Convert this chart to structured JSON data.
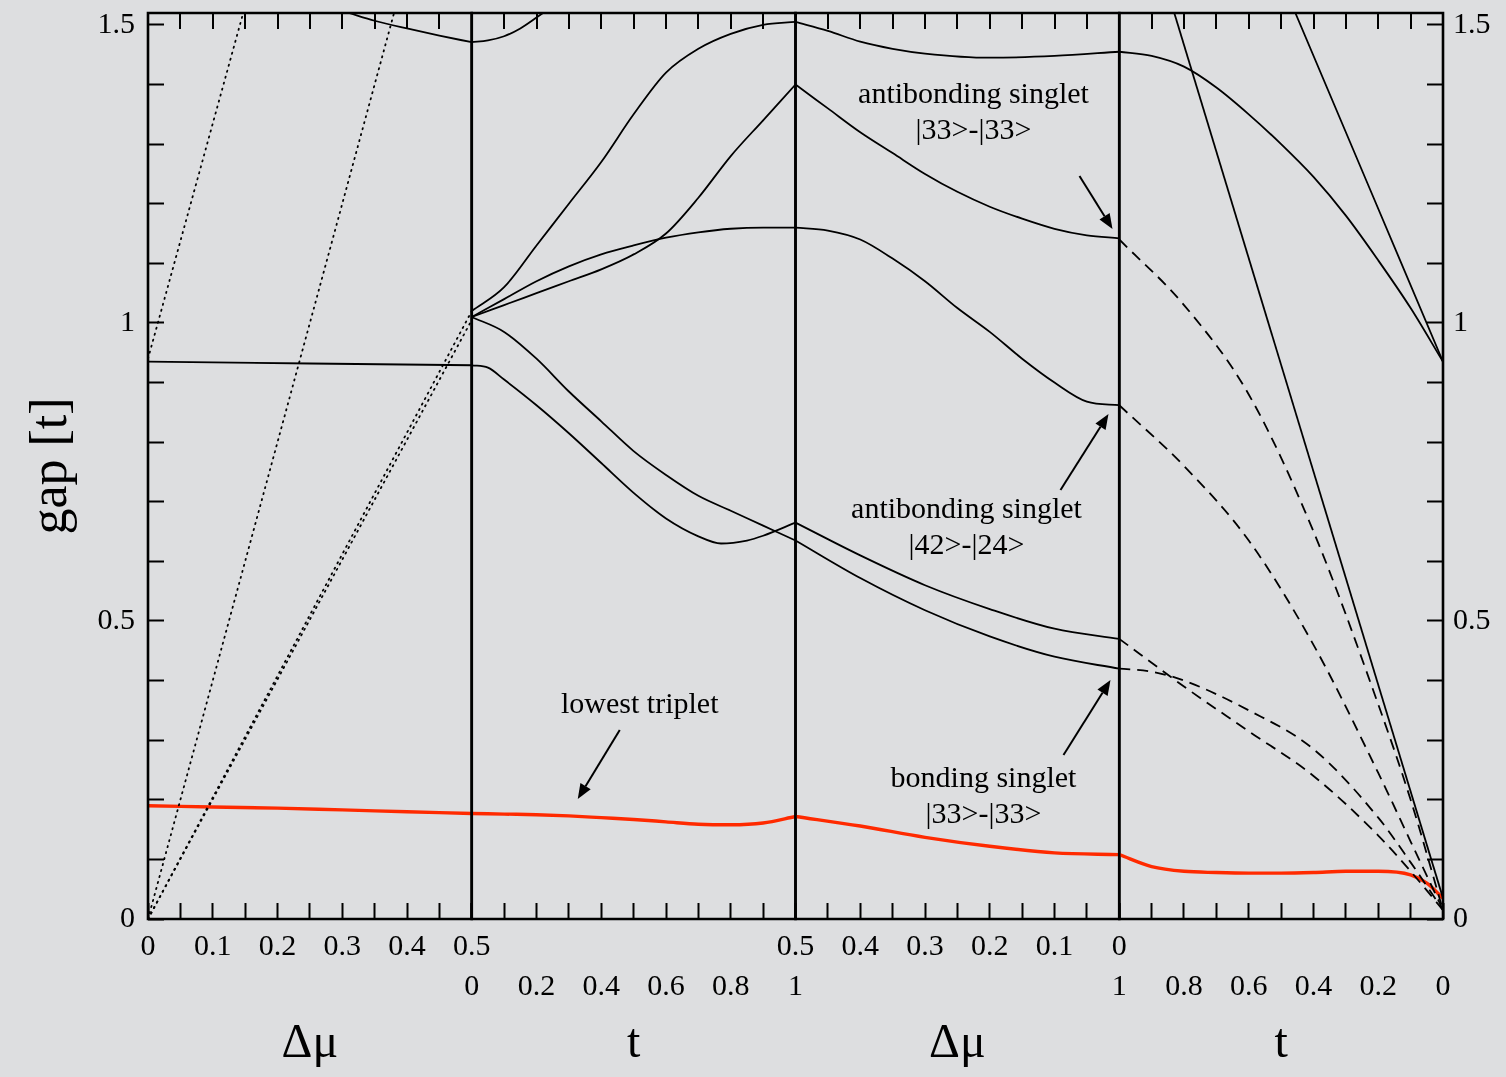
{
  "chart_data": [
    {
      "type": "line",
      "xlabel": "Δμ",
      "ylabel": "gap [t]",
      "marker": "none",
      "xlim": [
        0,
        0.5
      ],
      "xticks": [
        0,
        {
          "value": 0.05,
          "label": null
        },
        0.1,
        {
          "value": 0.15,
          "label": null
        },
        0.2,
        {
          "value": 0.25,
          "label": null
        },
        0.3,
        {
          "value": 0.35,
          "label": null
        },
        0.4,
        {
          "value": 0.45,
          "label": null
        },
        0.5
      ],
      "ylim": [
        0,
        1.52
      ],
      "yticks": [
        0,
        {
          "value": 0.1,
          "label": null
        },
        {
          "value": 0.2,
          "label": null
        },
        {
          "value": 0.3,
          "label": null
        },
        {
          "value": 0.4,
          "label": null
        },
        0.5,
        {
          "value": 0.6,
          "label": null
        },
        {
          "value": 0.7,
          "label": null
        },
        {
          "value": 0.8,
          "label": null
        },
        {
          "value": 0.9,
          "label": null
        },
        1,
        {
          "value": 1.1,
          "label": null
        },
        {
          "value": 1.2,
          "label": null
        },
        {
          "value": 1.3,
          "label": null
        },
        {
          "value": 1.4,
          "label": null
        },
        1.5
      ],
      "series": [
        {
          "color": "#000000",
          "line_style": "dotted",
          "x": [
            0,
            0.147
          ],
          "values": [
            0.94,
            1.52
          ]
        },
        {
          "color": "#000000",
          "line_style": "dotted",
          "x": [
            0,
            0.38
          ],
          "values": [
            0,
            1.52
          ]
        },
        {
          "color": "#000000",
          "line_style": "dotted",
          "x": [
            0,
            0.5
          ],
          "values": [
            0,
            1.02
          ]
        },
        {
          "color": "#000000",
          "line_style": "dotted",
          "x": [
            0,
            0.5
          ],
          "values": [
            0,
            1.005
          ]
        },
        {
          "color": "#000000",
          "line_style": "solid",
          "x": [
            0,
            0.5
          ],
          "values": [
            0.935,
            0.929
          ]
        },
        {
          "color": "#000000",
          "line_style": "solid",
          "x": [
            0.31,
            0.35,
            0.4,
            0.45,
            0.5
          ],
          "values": [
            1.52,
            1.507,
            1.494,
            1.482,
            1.471
          ]
        },
        {
          "color": "#ff2a00",
          "line_style": "solid",
          "x": [
            0,
            0.1,
            0.2,
            0.3,
            0.4,
            0.5
          ],
          "values": [
            0.19,
            0.188,
            0.186,
            0.183,
            0.18,
            0.177
          ]
        }
      ]
    },
    {
      "type": "line",
      "xlabel": "t",
      "marker": "none",
      "tick_labels": "x",
      "xlim": [
        0,
        1
      ],
      "xticks": [
        0,
        {
          "value": 0.1,
          "label": null
        },
        0.2,
        {
          "value": 0.3,
          "label": null
        },
        0.4,
        {
          "value": 0.5,
          "label": null
        },
        0.6,
        {
          "value": 0.7,
          "label": null
        },
        0.8,
        {
          "value": 0.9,
          "label": null
        },
        1
      ],
      "ylim": [
        0,
        1.52
      ],
      "series": [
        {
          "color": "#000000",
          "line_style": "solid",
          "x": [
            0,
            0.05,
            0.1,
            0.15,
            0.22
          ],
          "values": [
            1.471,
            1.474,
            1.481,
            1.494,
            1.52
          ]
        },
        {
          "color": "#000000",
          "line_style": "solid",
          "x": [
            0,
            0.1,
            0.2,
            0.3,
            0.4,
            0.5,
            0.6,
            0.7,
            0.8,
            0.9,
            1
          ],
          "values": [
            1.02,
            1.06,
            1.13,
            1.2,
            1.27,
            1.35,
            1.42,
            1.46,
            1.485,
            1.5,
            1.505
          ]
        },
        {
          "color": "#000000",
          "line_style": "solid",
          "x": [
            0,
            0.1,
            0.2,
            0.3,
            0.4,
            0.5,
            0.6,
            0.7,
            0.8,
            0.9,
            1
          ],
          "values": [
            1.01,
            1.03,
            1.05,
            1.07,
            1.09,
            1.115,
            1.15,
            1.21,
            1.28,
            1.34,
            1.4
          ]
        },
        {
          "color": "#000000",
          "line_style": "solid",
          "x": [
            0,
            0.1,
            0.2,
            0.3,
            0.4,
            0.5,
            0.6,
            0.7,
            0.8,
            0.9,
            1
          ],
          "values": [
            1.01,
            1.04,
            1.07,
            1.095,
            1.115,
            1.13,
            1.143,
            1.152,
            1.158,
            1.16,
            1.16
          ]
        },
        {
          "color": "#000000",
          "line_style": "solid",
          "x": [
            0,
            0.1,
            0.2,
            0.3,
            0.4,
            0.5,
            0.6,
            0.7,
            0.8,
            0.9,
            1
          ],
          "values": [
            1.01,
            0.985,
            0.94,
            0.885,
            0.835,
            0.785,
            0.745,
            0.71,
            0.685,
            0.66,
            0.635
          ]
        },
        {
          "color": "#000000",
          "line_style": "solid",
          "x": [
            0,
            0.05,
            0.1,
            0.2,
            0.3,
            0.4,
            0.5,
            0.6,
            0.7,
            0.77,
            0.85,
            0.9,
            1
          ],
          "values": [
            0.929,
            0.925,
            0.905,
            0.862,
            0.815,
            0.765,
            0.715,
            0.672,
            0.642,
            0.63,
            0.635,
            0.643,
            0.665
          ]
        },
        {
          "color": "#ff2a00",
          "line_style": "solid",
          "x": [
            0,
            0.1,
            0.2,
            0.3,
            0.4,
            0.5,
            0.6,
            0.7,
            0.8,
            0.9,
            1
          ],
          "values": [
            0.177,
            0.176,
            0.175,
            0.173,
            0.17,
            0.167,
            0.163,
            0.159,
            0.158,
            0.161,
            0.172
          ]
        }
      ],
      "annotations": [
        "lowest triplet"
      ]
    },
    {
      "type": "line",
      "xlabel": "Δμ",
      "marker": "none",
      "tick_labels": "x",
      "xlim": [
        0.5,
        0
      ],
      "xticks": [
        0.5,
        {
          "value": 0.45,
          "label": null
        },
        0.4,
        {
          "value": 0.35,
          "label": null
        },
        0.3,
        {
          "value": 0.25,
          "label": null
        },
        0.2,
        {
          "value": 0.15,
          "label": null
        },
        0.1,
        {
          "value": 0.05,
          "label": null
        },
        0
      ],
      "ylim": [
        0,
        1.52
      ],
      "series": [
        {
          "color": "#000000",
          "line_style": "solid",
          "x": [
            0.5,
            0.45,
            0.4,
            0.35,
            0.3,
            0.2,
            0.1,
            0
          ],
          "values": [
            1.505,
            1.49,
            1.472,
            1.46,
            1.452,
            1.445,
            1.448,
            1.455
          ]
        },
        {
          "color": "#000000",
          "line_style": "solid",
          "x": [
            0.5,
            0.45,
            0.4,
            0.35,
            0.3,
            0.25,
            0.2,
            0.15,
            0.1,
            0.05,
            0
          ],
          "values": [
            1.4,
            1.36,
            1.32,
            1.285,
            1.25,
            1.22,
            1.195,
            1.175,
            1.158,
            1.147,
            1.142
          ]
        },
        {
          "color": "#000000",
          "line_style": "solid",
          "x": [
            0.5,
            0.45,
            0.4,
            0.35,
            0.3,
            0.25,
            0.2,
            0.15,
            0.1,
            0.05,
            0
          ],
          "values": [
            1.16,
            1.155,
            1.14,
            1.108,
            1.07,
            1.025,
            0.985,
            0.94,
            0.9,
            0.868,
            0.862
          ]
        },
        {
          "color": "#000000",
          "line_style": "solid",
          "x": [
            0.5,
            0.4,
            0.3,
            0.2,
            0.1,
            0
          ],
          "values": [
            0.665,
            0.61,
            0.56,
            0.52,
            0.487,
            0.47
          ]
        },
        {
          "color": "#000000",
          "line_style": "solid",
          "x": [
            0.5,
            0.4,
            0.3,
            0.2,
            0.1,
            0
          ],
          "values": [
            0.635,
            0.572,
            0.518,
            0.474,
            0.44,
            0.42
          ]
        },
        {
          "color": "#ff2a00",
          "line_style": "solid",
          "x": [
            0.5,
            0.4,
            0.3,
            0.2,
            0.1,
            0
          ],
          "values": [
            0.172,
            0.156,
            0.137,
            0.122,
            0.111,
            0.108
          ]
        }
      ],
      "annotations": [
        "antibonding singlet\n|33>-|33>",
        "antibonding singlet\n|42>-|24>",
        "bonding singlet\n|33>-|33>"
      ]
    },
    {
      "type": "line",
      "xlabel": "t",
      "marker": "none",
      "xlim": [
        1,
        0
      ],
      "xticks": [
        1,
        {
          "value": 0.9,
          "label": null
        },
        0.8,
        {
          "value": 0.7,
          "label": null
        },
        0.6,
        {
          "value": 0.5,
          "label": null
        },
        0.4,
        {
          "value": 0.3,
          "label": null
        },
        0.2,
        {
          "value": 0.1,
          "label": null
        },
        0
      ],
      "y2lim": [
        0,
        1.52
      ],
      "y2ticks": [
        0,
        {
          "value": 0.1,
          "label": null
        },
        {
          "value": 0.2,
          "label": null
        },
        {
          "value": 0.3,
          "label": null
        },
        {
          "value": 0.4,
          "label": null
        },
        0.5,
        {
          "value": 0.6,
          "label": null
        },
        {
          "value": 0.7,
          "label": null
        },
        {
          "value": 0.8,
          "label": null
        },
        {
          "value": 0.9,
          "label": null
        },
        1,
        {
          "value": 1.1,
          "label": null
        },
        {
          "value": 1.2,
          "label": null
        },
        {
          "value": 1.3,
          "label": null
        },
        {
          "value": 1.4,
          "label": null
        },
        1.5
      ],
      "series": [
        {
          "color": "#000000",
          "line_style": "solid",
          "axis": "y2",
          "x": [
            1,
            0.9,
            0.8,
            0.7,
            0.6,
            0.5,
            0.4,
            0.3,
            0.2,
            0.1,
            0
          ],
          "values": [
            1.455,
            1.448,
            1.43,
            1.395,
            1.35,
            1.3,
            1.245,
            1.18,
            1.105,
            1.025,
            0.935
          ]
        },
        {
          "color": "#000000",
          "line_style": "solid",
          "axis": "y2",
          "x": [
            0.83,
            0
          ],
          "values": [
            1.52,
            0.035
          ]
        },
        {
          "color": "#000000",
          "line_style": "solid",
          "axis": "y2",
          "x": [
            0.456,
            0
          ],
          "values": [
            1.52,
            0.935
          ]
        },
        {
          "color": "#000000",
          "line_style": "dashed",
          "axis": "y2",
          "x": [
            1,
            0.8,
            0.6,
            0.4,
            0.2,
            0.1,
            0
          ],
          "values": [
            1.14,
            1.03,
            0.88,
            0.65,
            0.36,
            0.2,
            0.015
          ]
        },
        {
          "color": "#000000",
          "line_style": "dashed",
          "axis": "y2",
          "x": [
            1,
            0.8,
            0.6,
            0.4,
            0.2,
            0.1,
            0
          ],
          "values": [
            0.862,
            0.76,
            0.635,
            0.46,
            0.245,
            0.13,
            0.015
          ]
        },
        {
          "color": "#000000",
          "line_style": "dashed",
          "axis": "y2",
          "x": [
            1,
            0.9,
            0.8,
            0.6,
            0.4,
            0.2,
            0.1,
            0
          ],
          "values": [
            0.47,
            0.43,
            0.39,
            0.315,
            0.24,
            0.14,
            0.08,
            0.015
          ]
        },
        {
          "color": "#000000",
          "line_style": "dashed",
          "axis": "y2",
          "x": [
            1,
            0.9,
            0.8,
            0.6,
            0.4,
            0.2,
            0.1,
            0
          ],
          "values": [
            0.42,
            0.415,
            0.4,
            0.35,
            0.285,
            0.17,
            0.095,
            0.015
          ]
        },
        {
          "color": "#ff2a00",
          "line_style": "solid",
          "axis": "y2",
          "x": [
            1,
            0.9,
            0.8,
            0.7,
            0.6,
            0.5,
            0.4,
            0.3,
            0.2,
            0.1,
            0.05,
            0
          ],
          "values": [
            0.108,
            0.088,
            0.08,
            0.078,
            0.077,
            0.077,
            0.078,
            0.08,
            0.08,
            0.074,
            0.06,
            0.035
          ]
        }
      ]
    }
  ]
}
